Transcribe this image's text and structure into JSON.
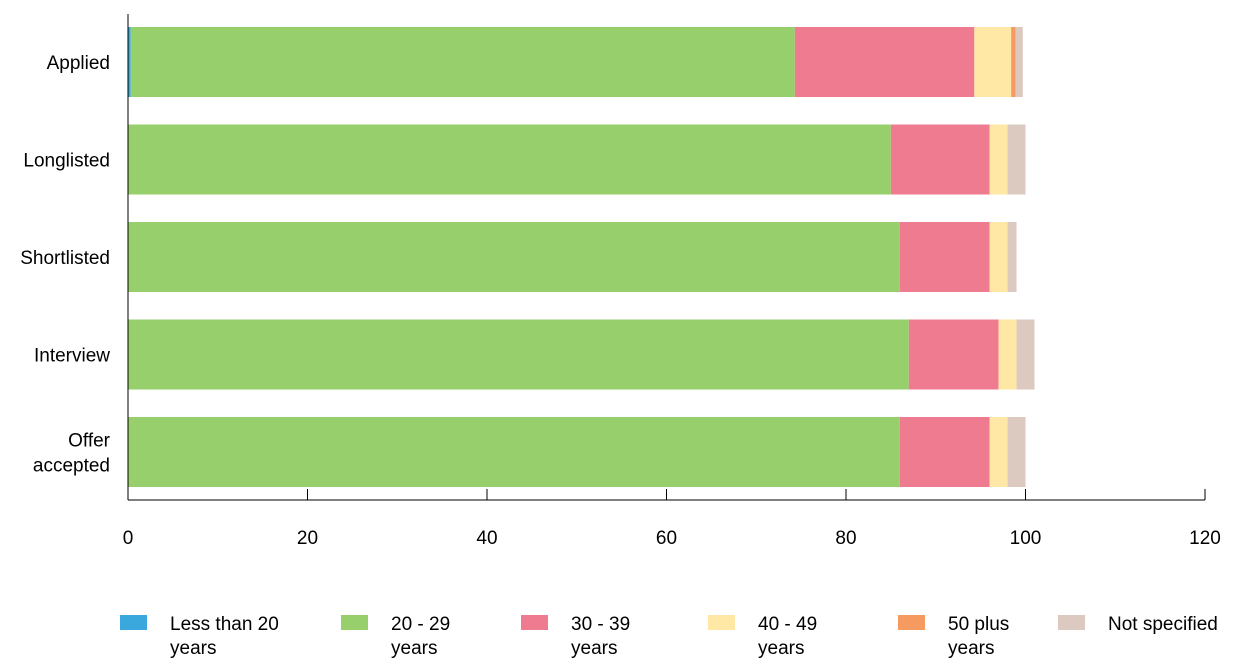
{
  "chart_data": {
    "type": "bar",
    "orientation": "horizontal",
    "stacked": true,
    "title": "",
    "xlabel": "",
    "ylabel": "",
    "xlim": [
      0,
      120
    ],
    "x_ticks": [
      "0",
      "20",
      "40",
      "60",
      "80",
      "100",
      "120"
    ],
    "categories": [
      [
        "Applied"
      ],
      [
        "Longlisted"
      ],
      [
        "Shortlisted"
      ],
      [
        "Interview"
      ],
      [
        "Offer",
        "accepted"
      ]
    ],
    "series": [
      {
        "name": [
          "Less than 20",
          "years"
        ],
        "color": "#3aa8dc",
        "values": [
          0.3,
          0,
          0,
          0,
          0
        ]
      },
      {
        "name": [
          "20 - 29",
          "years"
        ],
        "color": "#97cf6c",
        "values": [
          74,
          85,
          86,
          87,
          86
        ]
      },
      {
        "name": [
          "30 - 39",
          "years"
        ],
        "color": "#ef7b90",
        "values": [
          20,
          11,
          10,
          10,
          10
        ]
      },
      {
        "name": [
          "40 - 49",
          "years"
        ],
        "color": "#ffe8a6",
        "values": [
          4.1,
          2,
          2,
          2,
          2
        ]
      },
      {
        "name": [
          "50 plus",
          "years"
        ],
        "color": "#f59a60",
        "values": [
          0.5,
          0,
          0,
          0,
          0
        ]
      },
      {
        "name": [
          "Not specified"
        ],
        "color": "#dcc9bf",
        "values": [
          0.8,
          2,
          1,
          2,
          2
        ]
      }
    ],
    "grid": false,
    "legend": "bottom"
  }
}
